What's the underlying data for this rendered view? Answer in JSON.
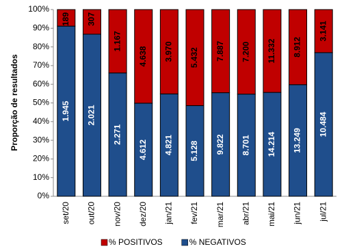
{
  "chart_data": {
    "type": "bar",
    "stack": "percent",
    "ylabel": "Proporção de resultados",
    "categories": [
      "set/20",
      "out/20",
      "nov/20",
      "dez/20",
      "jan/21",
      "fev/21",
      "mar/21",
      "abr/21",
      "mai/21",
      "jun/21",
      "jul/21"
    ],
    "series": [
      {
        "name": "% POSITIVOS",
        "color": "#c00000",
        "values": [
          189,
          307,
          1167,
          4638,
          3970,
          5432,
          7887,
          7200,
          11332,
          8912,
          3141
        ],
        "value_labels": [
          "189",
          "307",
          "1.167",
          "4.638",
          "3.970",
          "5.432",
          "7.887",
          "7.200",
          "11.332",
          "8.912",
          "3.141"
        ]
      },
      {
        "name": "% NEGATIVOS",
        "color": "#1f4e8c",
        "values": [
          1945,
          2021,
          2271,
          4612,
          4821,
          5128,
          9822,
          8701,
          14214,
          13249,
          10484
        ],
        "value_labels": [
          "1.945",
          "2.021",
          "2.271",
          "4.612",
          "4.821",
          "5.128",
          "9.822",
          "8.701",
          "14.214",
          "13.249",
          "10.484"
        ]
      }
    ],
    "ylim": [
      0,
      100
    ],
    "yticks": [
      {
        "value": 0,
        "label": "0%"
      },
      {
        "value": 10,
        "label": "10%"
      },
      {
        "value": 20,
        "label": "20%"
      },
      {
        "value": 30,
        "label": "30%"
      },
      {
        "value": 40,
        "label": "40%"
      },
      {
        "value": 50,
        "label": "50%"
      },
      {
        "value": 60,
        "label": "60%"
      },
      {
        "value": 70,
        "label": "70%"
      },
      {
        "value": 80,
        "label": "80%"
      },
      {
        "value": 90,
        "label": "90%"
      },
      {
        "value": 100,
        "label": "100%"
      }
    ]
  }
}
